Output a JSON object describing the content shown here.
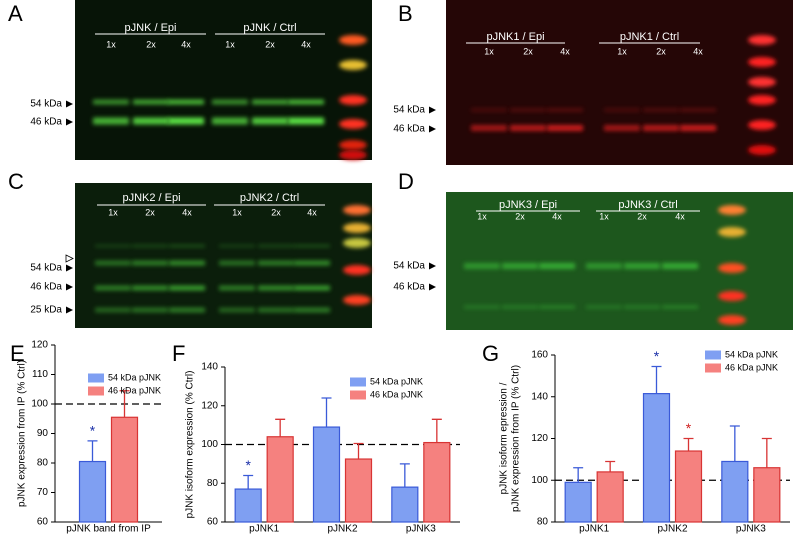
{
  "blots": [
    {
      "panel": "A",
      "groups": [
        {
          "label": "pJNK / Epi",
          "lanes": [
            "1x",
            "2x",
            "4x"
          ]
        },
        {
          "label": "pJNK / Ctrl",
          "lanes": [
            "1x",
            "2x",
            "4x"
          ]
        }
      ],
      "markers": [
        "54 kDa",
        "46 kDa"
      ]
    },
    {
      "panel": "B",
      "groups": [
        {
          "label": "pJNK1 / Epi",
          "lanes": [
            "1x",
            "2x",
            "4x"
          ]
        },
        {
          "label": "pJNK1 / Ctrl",
          "lanes": [
            "1x",
            "2x",
            "4x"
          ]
        }
      ],
      "markers": [
        "54 kDa",
        "46 kDa"
      ]
    },
    {
      "panel": "C",
      "groups": [
        {
          "label": "pJNK2 / Epi",
          "lanes": [
            "1x",
            "2x",
            "4x"
          ]
        },
        {
          "label": "pJNK2 / Ctrl",
          "lanes": [
            "1x",
            "2x",
            "4x"
          ]
        }
      ],
      "markers": [
        "54 kDa",
        "46 kDa",
        "25 kDa"
      ]
    },
    {
      "panel": "D",
      "groups": [
        {
          "label": "pJNK3 / Epi",
          "lanes": [
            "1x",
            "2x",
            "4x"
          ]
        },
        {
          "label": "pJNK3 / Ctrl",
          "lanes": [
            "1x",
            "2x",
            "4x"
          ]
        }
      ],
      "markers": [
        "54 kDa",
        "46 kDa"
      ]
    }
  ],
  "chart_data": [
    {
      "type": "bar",
      "panel": "E",
      "ylabel": [
        "pJNK expression from IP (% Ctrl)"
      ],
      "categories": [
        "pJNK band from IP"
      ],
      "series": [
        {
          "name": "54 kDa pJNK",
          "color": "#7f9ff2",
          "edgecolor": "#3a5ad8",
          "annotation_color": "#1a2fa8",
          "values": [
            80.5
          ],
          "errors": [
            7
          ],
          "annotations": [
            "*"
          ]
        },
        {
          "name": "46 kDa pJNK",
          "color": "#f5817f",
          "edgecolor": "#d83434",
          "annotation_color": "#d02020",
          "values": [
            95.5
          ],
          "errors": [
            9
          ],
          "annotations": [
            null
          ]
        }
      ],
      "ylim": [
        60,
        120
      ],
      "yticks": [
        60,
        70,
        80,
        90,
        100,
        110,
        120
      ],
      "reference_line": 100,
      "legend": "top-right"
    },
    {
      "type": "bar",
      "panel": "F",
      "ylabel": [
        "pJNK isoform expression (% Ctrl)"
      ],
      "categories": [
        "pJNK1",
        "pJNK2",
        "pJNK3"
      ],
      "series": [
        {
          "name": "54 kDa pJNK",
          "color": "#7f9ff2",
          "edgecolor": "#3a5ad8",
          "annotation_color": "#1a2fa8",
          "values": [
            77,
            109,
            78
          ],
          "errors": [
            7,
            15,
            12
          ],
          "annotations": [
            "*",
            null,
            null
          ]
        },
        {
          "name": "46 kDa pJNK",
          "color": "#f5817f",
          "edgecolor": "#d83434",
          "annotation_color": "#d02020",
          "values": [
            104,
            92.5,
            101
          ],
          "errors": [
            9,
            8,
            12
          ],
          "annotations": [
            null,
            null,
            null
          ]
        }
      ],
      "ylim": [
        60,
        140
      ],
      "yticks": [
        60,
        80,
        100,
        120,
        140
      ],
      "reference_line": 100,
      "legend": "top-right"
    },
    {
      "type": "bar",
      "panel": "G",
      "ylabel": [
        "pJNK isoform epression /",
        "pJNK expression from IP (% Ctrl)"
      ],
      "categories": [
        "pJNK1",
        "pJNK2",
        "pJNK3"
      ],
      "series": [
        {
          "name": "54 kDa pJNK",
          "color": "#7f9ff2",
          "edgecolor": "#3a5ad8",
          "annotation_color": "#1a2fa8",
          "values": [
            99,
            141.5,
            109
          ],
          "errors": [
            7,
            13,
            17
          ],
          "annotations": [
            null,
            "*",
            null
          ]
        },
        {
          "name": "46 kDa pJNK",
          "color": "#f5817f",
          "edgecolor": "#d83434",
          "annotation_color": "#d02020",
          "values": [
            104,
            114,
            106
          ],
          "errors": [
            5,
            6,
            14
          ],
          "annotations": [
            null,
            "*",
            null
          ]
        }
      ],
      "ylim": [
        80,
        160
      ],
      "yticks": [
        80,
        100,
        120,
        140,
        160
      ],
      "reference_line": 100,
      "legend": "top-right"
    }
  ]
}
